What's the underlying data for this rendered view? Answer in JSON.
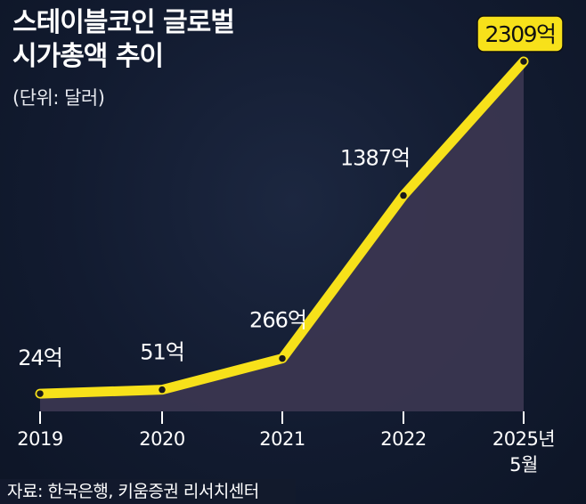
{
  "header": {
    "title_line1": "스테이블코인 글로벌",
    "title_line2": "시가총액 추이",
    "unit": "(단위: 달러)"
  },
  "source": "자료: 한국은행, 키움증권 리서치센터",
  "colors": {
    "background": "#121b30",
    "line": "#f7e11a",
    "area": "#3a3650",
    "text": "#ffffff",
    "highlight_box": "#f7e11a"
  },
  "chart_data": {
    "type": "area",
    "title": "스테이블코인 글로벌 시가총액 추이",
    "ylabel": "(단위: 달러)",
    "xlabel": "",
    "categories": [
      "2019",
      "2020",
      "2021",
      "2022",
      "2025년 5월"
    ],
    "category_lines": [
      [
        "2019"
      ],
      [
        "2020"
      ],
      [
        "2021"
      ],
      [
        "2022"
      ],
      [
        "2025년",
        "5월"
      ]
    ],
    "values": [
      24,
      51,
      266,
      1387,
      2309
    ],
    "value_labels": [
      "24억",
      "51억",
      "266억",
      "1387억",
      "2309억"
    ],
    "unit": "억 달러",
    "ylim": [
      0,
      2309
    ],
    "highlight_index": 4,
    "grid": false
  }
}
